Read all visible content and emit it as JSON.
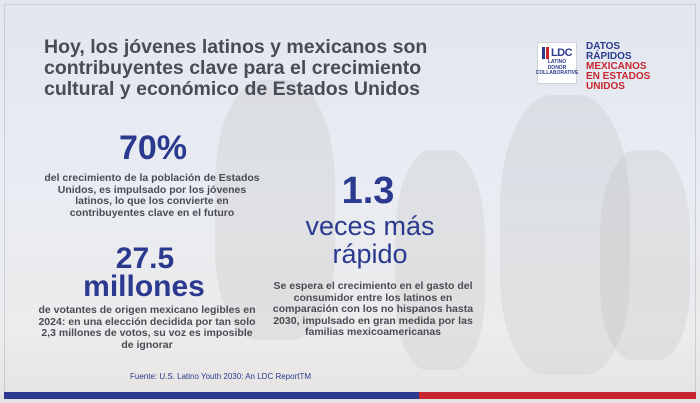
{
  "headline": "Hoy, los jóvenes latinos y mexicanos son contribuyentes clave para el crecimiento cultural y económico de Estados Unidos",
  "logo": {
    "mark": "LDC",
    "line1": "LATINO",
    "line2": "DONOR",
    "line3": "COLLABORATIVE"
  },
  "facts_label": {
    "line1": "DATOS",
    "line2": "RÁPIDOS",
    "line3": "MEXICANOS",
    "line4": "EN ESTADOS",
    "line5": "UNIDOS"
  },
  "stat_70": {
    "value": "70%",
    "text": "del crecimiento de la población de Estados Unidos, es impulsado por los jóvenes latinos, lo que los convierte en contribuyentes clave en el futuro"
  },
  "stat_275": {
    "value": "27.5",
    "unit": "millones",
    "text": "de votantes de origen mexicano legibles en 2024: en una elección decidida por tan solo 2,3 millones de votos, su voz es imposible de ignorar"
  },
  "stat_13": {
    "value": "1.3",
    "unit": "veces más rápido",
    "text": "Se espera el crecimiento en el gasto del consumidor entre los latinos en comparación con los no hispanos hasta 2030, impulsado en gran medida por las familias mexicoamericanas"
  },
  "source": "Fuente: U.S. Latino Youth 2030: An LDC ReportTM",
  "colors": {
    "brand_blue": "#2b3a8f",
    "brand_red": "#c8252f",
    "text_gray": "#4a4c55"
  }
}
